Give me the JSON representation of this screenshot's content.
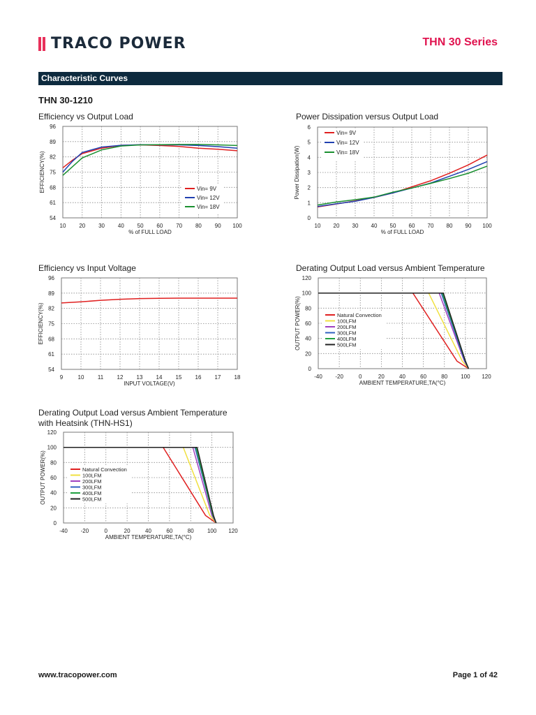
{
  "header": {
    "logo_text": "TRACO POWER",
    "series": "THN 30 Series",
    "brand_color": "#e8305a"
  },
  "section_title": "Characteristic Curves",
  "model": "THN 30-1210",
  "footer": {
    "url": "www.tracopower.com",
    "page": "Page 1 of 42"
  },
  "chart_data": [
    {
      "type": "line",
      "title": "Efficiency vs Output Load",
      "xlabel": "% of FULL LOAD",
      "ylabel": "EFFICIENCY(%)",
      "xlim": [
        10,
        100
      ],
      "ylim": [
        54,
        96
      ],
      "xticks": [
        10,
        20,
        30,
        40,
        50,
        60,
        70,
        80,
        90,
        100
      ],
      "yticks": [
        54,
        61,
        68,
        75,
        82,
        89,
        96
      ],
      "grid": true,
      "legend": "bottom-right",
      "series": [
        {
          "name": "Vin= 9V",
          "color": "#e02020",
          "points": [
            [
              10,
              77
            ],
            [
              15,
              80.5
            ],
            [
              20,
              83.5
            ],
            [
              30,
              86
            ],
            [
              40,
              87.3
            ],
            [
              50,
              87.5
            ],
            [
              60,
              87.2
            ],
            [
              70,
              86.8
            ],
            [
              80,
              86
            ],
            [
              90,
              85.5
            ],
            [
              100,
              84.8
            ]
          ]
        },
        {
          "name": "Vin= 12V",
          "color": "#2040b0",
          "points": [
            [
              10,
              75
            ],
            [
              15,
              80
            ],
            [
              20,
              84
            ],
            [
              30,
              86.5
            ],
            [
              40,
              87.3
            ],
            [
              50,
              87.6
            ],
            [
              60,
              87.5
            ],
            [
              70,
              87.5
            ],
            [
              80,
              87.2
            ],
            [
              90,
              86.7
            ],
            [
              100,
              86
            ]
          ]
        },
        {
          "name": "Vin= 18V",
          "color": "#1a9030",
          "points": [
            [
              10,
              73.5
            ],
            [
              15,
              77.5
            ],
            [
              20,
              81.5
            ],
            [
              30,
              85.2
            ],
            [
              40,
              87
            ],
            [
              50,
              87.5
            ],
            [
              60,
              87.6
            ],
            [
              70,
              87.7
            ],
            [
              80,
              87.7
            ],
            [
              90,
              87.5
            ],
            [
              100,
              87.2
            ]
          ]
        }
      ]
    },
    {
      "type": "line",
      "title": "Power Dissipation versus Output Load",
      "xlabel": "% of FULL LOAD",
      "ylabel": "Power Dissipation(W)",
      "xlim": [
        10,
        100
      ],
      "ylim": [
        0,
        6
      ],
      "xticks": [
        10,
        20,
        30,
        40,
        50,
        60,
        70,
        80,
        90,
        100
      ],
      "yticks": [
        0,
        1,
        2,
        3,
        4,
        5,
        6
      ],
      "grid": true,
      "legend": "top-left",
      "series": [
        {
          "name": "Vin= 9V",
          "color": "#e02020",
          "points": [
            [
              10,
              0.72
            ],
            [
              20,
              0.92
            ],
            [
              30,
              1.12
            ],
            [
              40,
              1.35
            ],
            [
              50,
              1.65
            ],
            [
              60,
              2.05
            ],
            [
              70,
              2.45
            ],
            [
              80,
              2.95
            ],
            [
              90,
              3.5
            ],
            [
              100,
              4.15
            ]
          ]
        },
        {
          "name": "Vin= 12V",
          "color": "#2040b0",
          "points": [
            [
              10,
              0.75
            ],
            [
              20,
              0.93
            ],
            [
              30,
              1.1
            ],
            [
              40,
              1.35
            ],
            [
              50,
              1.65
            ],
            [
              60,
              1.97
            ],
            [
              70,
              2.3
            ],
            [
              80,
              2.75
            ],
            [
              90,
              3.2
            ],
            [
              100,
              3.72
            ]
          ]
        },
        {
          "name": "Vin= 18V",
          "color": "#1a9030",
          "points": [
            [
              10,
              0.85
            ],
            [
              20,
              1.05
            ],
            [
              30,
              1.2
            ],
            [
              40,
              1.37
            ],
            [
              50,
              1.7
            ],
            [
              60,
              1.97
            ],
            [
              70,
              2.28
            ],
            [
              80,
              2.6
            ],
            [
              90,
              2.95
            ],
            [
              100,
              3.42
            ]
          ]
        }
      ]
    },
    {
      "type": "line",
      "title": "Efficiency vs Input Voltage",
      "xlabel": "INPUT VOLTAGE(V)",
      "ylabel": "EFFICIENCY(%)",
      "xlim": [
        9,
        18
      ],
      "ylim": [
        54,
        96
      ],
      "xticks": [
        9,
        10,
        11,
        12,
        13,
        14,
        15,
        16,
        17,
        18
      ],
      "yticks": [
        54,
        61,
        68,
        75,
        82,
        89,
        96
      ],
      "grid": true,
      "legend": "none",
      "series": [
        {
          "color": "#e02020",
          "points": [
            [
              9,
              84.5
            ],
            [
              10,
              85
            ],
            [
              11,
              85.7
            ],
            [
              12,
              86.2
            ],
            [
              13,
              86.5
            ],
            [
              14,
              86.6
            ],
            [
              15,
              86.7
            ],
            [
              16,
              86.7
            ],
            [
              17,
              86.7
            ],
            [
              18,
              86.7
            ]
          ]
        }
      ]
    },
    {
      "type": "line",
      "title": "Derating Output Load versus Ambient Temperature",
      "xlabel": "AMBIENT TEMPERATURE,TA(°C)",
      "ylabel": "OUTPUT POWER(%)",
      "xlim": [
        -40,
        120
      ],
      "ylim": [
        0,
        120
      ],
      "xticks": [
        -40,
        -20,
        0,
        20,
        40,
        60,
        80,
        100,
        120
      ],
      "yticks": [
        0,
        20,
        40,
        60,
        80,
        100,
        120
      ],
      "grid": true,
      "legend": "middle-left",
      "series": [
        {
          "name": "Natural Convection",
          "color": "#e02020",
          "points": [
            [
              -40,
              100
            ],
            [
              50,
              100
            ],
            [
              92,
              10
            ],
            [
              103,
              0
            ]
          ]
        },
        {
          "name": "100LFM",
          "color": "#f0e040",
          "points": [
            [
              -40,
              100
            ],
            [
              65,
              100
            ],
            [
              97,
              10
            ],
            [
              103,
              0
            ]
          ]
        },
        {
          "name": "200LFM",
          "color": "#a040c0",
          "points": [
            [
              -40,
              100
            ],
            [
              75,
              100
            ],
            [
              99,
              10
            ],
            [
              103,
              0
            ]
          ]
        },
        {
          "name": "300LFM",
          "color": "#3060c0",
          "points": [
            [
              -40,
              100
            ],
            [
              77,
              100
            ],
            [
              99.5,
              10
            ],
            [
              103,
              0
            ]
          ]
        },
        {
          "name": "400LFM",
          "color": "#20a040",
          "points": [
            [
              -40,
              100
            ],
            [
              78,
              100
            ],
            [
              100,
              10
            ],
            [
              103,
              0
            ]
          ]
        },
        {
          "name": "500LFM",
          "color": "#202020",
          "points": [
            [
              -40,
              100
            ],
            [
              79,
              100
            ],
            [
              100,
              10
            ],
            [
              103,
              0
            ]
          ]
        }
      ]
    },
    {
      "type": "line",
      "title": "Derating Output Load versus Ambient Temperature",
      "subtitle": "with Heatsink (THN-HS1)",
      "xlabel": "AMBIENT TEMPERATURE,TA(°C)",
      "ylabel": "OUTPUT POWER(%)",
      "xlim": [
        -40,
        120
      ],
      "ylim": [
        0,
        120
      ],
      "xticks": [
        -40,
        -20,
        0,
        20,
        40,
        60,
        80,
        100,
        120
      ],
      "yticks": [
        0,
        20,
        40,
        60,
        80,
        100,
        120
      ],
      "grid": true,
      "legend": "middle-left",
      "series": [
        {
          "name": "Natural Convection",
          "color": "#e02020",
          "points": [
            [
              -40,
              100
            ],
            [
              54,
              100
            ],
            [
              94,
              10
            ],
            [
              104,
              0
            ]
          ]
        },
        {
          "name": "100LFM",
          "color": "#f0e040",
          "points": [
            [
              -40,
              100
            ],
            [
              73,
              100
            ],
            [
              98,
              10
            ],
            [
              104,
              0
            ]
          ]
        },
        {
          "name": "200LFM",
          "color": "#a040c0",
          "points": [
            [
              -40,
              100
            ],
            [
              82,
              100
            ],
            [
              100,
              10
            ],
            [
              104,
              0
            ]
          ]
        },
        {
          "name": "300LFM",
          "color": "#3060c0",
          "points": [
            [
              -40,
              100
            ],
            [
              84,
              100
            ],
            [
              101,
              10
            ],
            [
              104,
              0
            ]
          ]
        },
        {
          "name": "400LFM",
          "color": "#20a040",
          "points": [
            [
              -40,
              100
            ],
            [
              85,
              100
            ],
            [
              101,
              10
            ],
            [
              104,
              0
            ]
          ]
        },
        {
          "name": "500LFM",
          "color": "#202020",
          "points": [
            [
              -40,
              100
            ],
            [
              86,
              100
            ],
            [
              101.5,
              10
            ],
            [
              104,
              0
            ]
          ]
        }
      ]
    }
  ]
}
